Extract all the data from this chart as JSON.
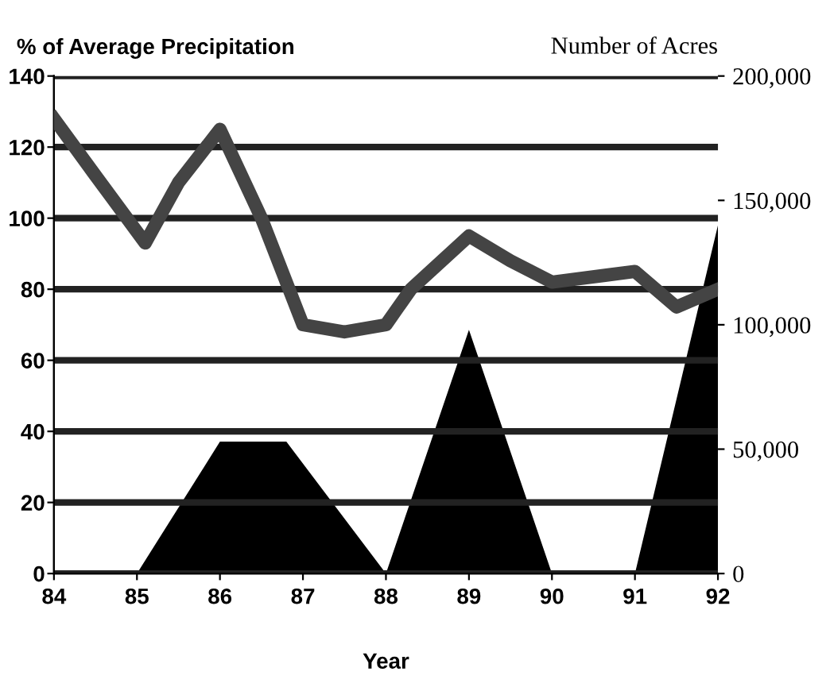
{
  "chart_data": {
    "type": "line",
    "xlabel": "Year",
    "ylabel": "% of Average Precipitation",
    "y2label": "Number of Acres",
    "series": [
      {
        "type": "area",
        "axis": "y2",
        "color": "#000000",
        "x": [
          84,
          85,
          86,
          86.8,
          88,
          89,
          90,
          91,
          92
        ],
        "values": [
          0,
          0,
          53000,
          53000,
          0,
          98000,
          0,
          0,
          140000
        ]
      },
      {
        "axis": "y",
        "color": "#444444",
        "x": [
          84,
          84.5,
          85.1,
          85.5,
          86,
          86.5,
          87,
          87.5,
          88,
          88.3,
          89,
          89.5,
          90,
          91,
          91.5,
          92
        ],
        "values": [
          128,
          112,
          93,
          110,
          125,
          100,
          70,
          68,
          70,
          80,
          95,
          88,
          82,
          85,
          75,
          80
        ]
      }
    ],
    "xlim": [
      84,
      92
    ],
    "xticks": [
      {
        "value": 84,
        "label": "84"
      },
      {
        "value": 85,
        "label": "85"
      },
      {
        "value": 86,
        "label": "86"
      },
      {
        "value": 87,
        "label": "87"
      },
      {
        "value": 88,
        "label": "88"
      },
      {
        "value": 89,
        "label": "89"
      },
      {
        "value": 90,
        "label": "90"
      },
      {
        "value": 91,
        "label": "91"
      },
      {
        "value": 92,
        "label": "92"
      }
    ],
    "ylim": [
      0,
      140
    ],
    "yticks": [
      0,
      20,
      40,
      60,
      80,
      100,
      120,
      140
    ],
    "y2lim": [
      0,
      200000
    ],
    "y2ticks": [
      0,
      {
        "value": 50000,
        "label": "50,000"
      },
      {
        "value": 100000,
        "label": "100,000"
      },
      {
        "value": 150000,
        "label": "150,000"
      },
      {
        "value": 200000,
        "label": "200,000"
      }
    ],
    "grid": "y",
    "legend": false
  }
}
